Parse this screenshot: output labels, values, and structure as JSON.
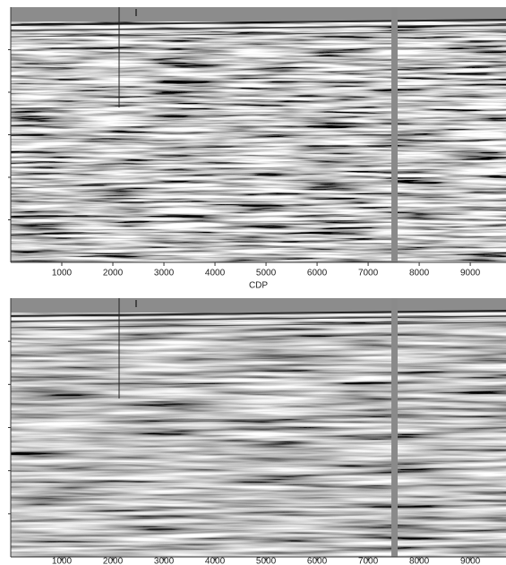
{
  "chart_data": [
    {
      "type": "seismic",
      "x_label": "CDP",
      "xlim": [
        0,
        9700
      ],
      "xticks": [
        1000,
        2000,
        3000,
        4000,
        5000,
        6000,
        7000,
        8000,
        9000
      ]
    },
    {
      "type": "seismic",
      "xlim": [
        0,
        9700
      ],
      "xticks": [
        1000,
        2000,
        3000,
        4000,
        5000,
        6000,
        7000,
        8000,
        9000
      ]
    }
  ]
}
